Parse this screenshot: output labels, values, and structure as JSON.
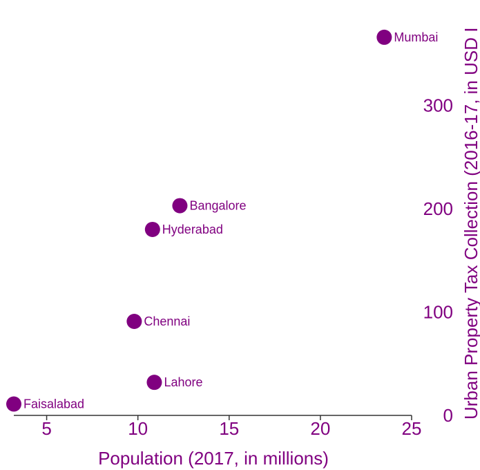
{
  "colors": {
    "accent": "#800080",
    "axis_line": "#333333",
    "x_text": "#800080",
    "y_text": "#800080"
  },
  "chart_data": {
    "type": "scatter",
    "title": "",
    "xlabel": "Population (2017, in millions)",
    "ylabel": "Urban Property Tax Collection (2016-17, in USD I",
    "xlim": [
      3.2,
      25
    ],
    "ylim": [
      0,
      380
    ],
    "x_ticks": [
      5,
      10,
      15,
      20,
      25
    ],
    "y_ticks": [
      0,
      100,
      200,
      300
    ],
    "grid": false,
    "points": [
      {
        "label": "Mumbai",
        "x": 23.5,
        "y": 366
      },
      {
        "label": "Bangalore",
        "x": 12.3,
        "y": 203
      },
      {
        "label": "Hyderabad",
        "x": 10.8,
        "y": 180
      },
      {
        "label": "Chennai",
        "x": 9.8,
        "y": 91
      },
      {
        "label": "Lahore",
        "x": 10.9,
        "y": 32
      },
      {
        "label": "Faisalabad",
        "x": 3.2,
        "y": 11
      }
    ]
  }
}
